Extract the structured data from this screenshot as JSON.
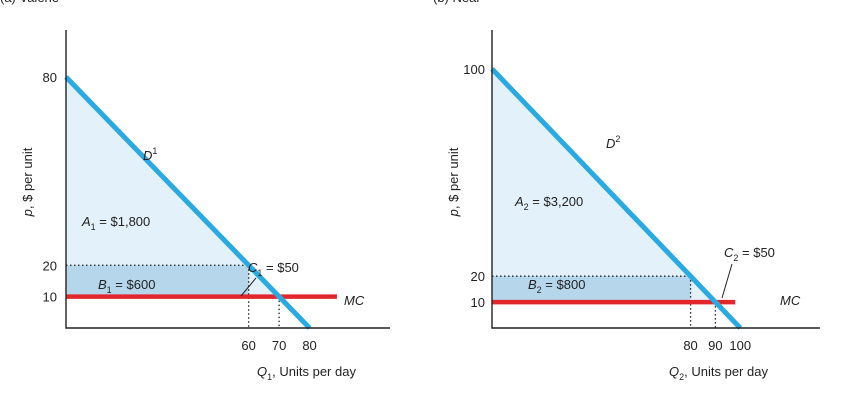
{
  "chart_data": [
    {
      "type": "line",
      "title": "(a) Valerie",
      "ylabel": "p, $ per unit",
      "xlabel": {
        "var": "Q",
        "sub": "1",
        "rest": ", Units per day"
      },
      "xlim": [
        0,
        90
      ],
      "ylim": [
        0,
        95
      ],
      "y_ticks": [
        80,
        20,
        10
      ],
      "x_ticks": [
        60,
        70,
        80
      ],
      "demand": {
        "name": "D",
        "sup": "1",
        "points": [
          [
            0,
            80
          ],
          [
            80,
            0
          ]
        ]
      },
      "mc": {
        "name": "MC",
        "value": 10,
        "x_end": 89
      },
      "price": 20,
      "areas": {
        "A": {
          "sym": "A",
          "sub": "1",
          "text": " = $1,800"
        },
        "B": {
          "sym": "B",
          "sub": "1",
          "text": " = $600"
        },
        "C": {
          "sym": "C",
          "sub": "1",
          "text": " = $50"
        }
      }
    },
    {
      "type": "line",
      "title": "(b) Neal",
      "ylabel": "p, $ per unit",
      "xlabel": {
        "var": "Q",
        "sub": "2",
        "rest": ", Units per day"
      },
      "xlim": [
        0,
        112
      ],
      "ylim": [
        0,
        115
      ],
      "y_ticks": [
        100,
        20,
        10
      ],
      "x_ticks": [
        80,
        90,
        100
      ],
      "demand": {
        "name": "D",
        "sup": "2",
        "points": [
          [
            0,
            100
          ],
          [
            100,
            0
          ]
        ]
      },
      "mc": {
        "name": "MC",
        "value": 10,
        "x_end": 98
      },
      "price": 20,
      "areas": {
        "A": {
          "sym": "A",
          "sub": "2",
          "text": " = $3,200"
        },
        "B": {
          "sym": "B",
          "sub": "2",
          "text": " = $800"
        },
        "C": {
          "sym": "C",
          "sub": "2",
          "text": " = $50"
        }
      }
    }
  ],
  "colors": {
    "demand": "#2aaae2",
    "mc": "#e2262b",
    "areaA": "#e3f1fa",
    "areaB": "#b6d6ec",
    "axis": "#222222",
    "dots": "#222222"
  }
}
